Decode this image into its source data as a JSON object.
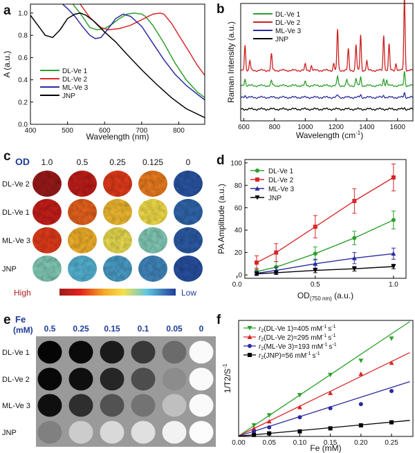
{
  "panel_letters": [
    "a",
    "b",
    "c",
    "d",
    "e",
    "f"
  ],
  "chart_data": [
    {
      "panel": "a",
      "type": "line",
      "title": "",
      "xlabel": "Wavelength (nm)",
      "ylabel": "A (a.u.)",
      "xlim": [
        400,
        870
      ],
      "ylim": [
        0,
        1.08
      ],
      "xticks": [
        400,
        500,
        600,
        700,
        800
      ],
      "yticks": [
        0.0,
        0.2,
        0.4,
        0.6,
        0.8,
        1.0
      ],
      "ytick_labels": [
        "0.0",
        "0.2",
        "0.4",
        "0.6",
        "0.8",
        "1.0"
      ],
      "legend": "bottom-left",
      "series": [
        {
          "name": "DL-Ve 1",
          "color": "#2ca02c",
          "x": [
            510,
            540,
            560,
            580,
            600,
            620,
            640,
            660,
            680,
            700,
            710,
            730,
            760,
            790,
            820,
            850,
            870
          ],
          "y": [
            1.1,
            0.97,
            0.87,
            0.85,
            0.86,
            0.9,
            0.95,
            0.99,
            1.0,
            0.99,
            0.97,
            0.89,
            0.73,
            0.55,
            0.4,
            0.29,
            0.24
          ]
        },
        {
          "name": "DL-Ve 2",
          "color": "#d62728",
          "x": [
            530,
            560,
            590,
            610,
            640,
            670,
            700,
            730,
            750,
            760,
            780,
            800,
            830,
            850,
            870
          ],
          "y": [
            1.1,
            0.96,
            0.87,
            0.85,
            0.86,
            0.89,
            0.94,
            0.99,
            1.0,
            0.99,
            0.91,
            0.8,
            0.64,
            0.53,
            0.44
          ]
        },
        {
          "name": "ML-Ve 3",
          "color": "#2a2aa0",
          "x": [
            480,
            500,
            520,
            540,
            560,
            575,
            590,
            610,
            630,
            650,
            670,
            700,
            730,
            760,
            790,
            820,
            850,
            870
          ],
          "y": [
            1.1,
            1.04,
            0.97,
            0.88,
            0.8,
            0.77,
            0.78,
            0.86,
            0.95,
            0.99,
            0.97,
            0.88,
            0.73,
            0.58,
            0.45,
            0.35,
            0.27,
            0.22
          ]
        },
        {
          "name": "JNP",
          "color": "#000000",
          "x": [
            400,
            420,
            440,
            460,
            480,
            500,
            520,
            535,
            550,
            570,
            600,
            630,
            660,
            700,
            740,
            780,
            820,
            870
          ],
          "y": [
            0.98,
            0.89,
            0.8,
            0.78,
            0.85,
            0.95,
            0.99,
            1.0,
            0.98,
            0.93,
            0.83,
            0.74,
            0.63,
            0.49,
            0.36,
            0.24,
            0.14,
            0.06
          ]
        }
      ]
    },
    {
      "panel": "b",
      "type": "line",
      "title": "",
      "xlabel": "Wavelength (cm",
      "xlabel_superscript": "-1",
      "xlabel_suffix": ")",
      "ylabel": "Raman Intensity (a.u.)",
      "xlim": [
        580,
        1700
      ],
      "xticks": [
        600,
        800,
        1000,
        1200,
        1400,
        1600
      ],
      "legend": "top-left",
      "series": [
        {
          "name": "DL-Ve 1",
          "color": "#2ca02c",
          "baseline": 0.3,
          "peaks": [
            [
              608,
              0.06
            ],
            [
              780,
              0.04
            ],
            [
              1000,
              0.03
            ],
            [
              1210,
              0.08
            ],
            [
              1270,
              0.05
            ],
            [
              1330,
              0.06
            ],
            [
              1360,
              0.07
            ],
            [
              1510,
              0.06
            ],
            [
              1530,
              0.05
            ],
            [
              1645,
              0.12
            ]
          ]
        },
        {
          "name": "DL-Ve 2",
          "color": "#cc1f1f",
          "baseline": 0.43,
          "peaks": [
            [
              608,
              0.22
            ],
            [
              640,
              0.08
            ],
            [
              780,
              0.14
            ],
            [
              1000,
              0.05
            ],
            [
              1040,
              0.04
            ],
            [
              1185,
              0.06
            ],
            [
              1210,
              0.35
            ],
            [
              1280,
              0.18
            ],
            [
              1330,
              0.22
            ],
            [
              1360,
              0.3
            ],
            [
              1400,
              0.08
            ],
            [
              1510,
              0.3
            ],
            [
              1545,
              0.22
            ],
            [
              1590,
              0.06
            ],
            [
              1645,
              0.62
            ]
          ]
        },
        {
          "name": "ML-Ve 3",
          "color": "#2a2aa0",
          "baseline": 0.2,
          "peaks": [
            [
              608,
              0.02
            ],
            [
              1210,
              0.02
            ],
            [
              1360,
              0.02
            ],
            [
              1510,
              0.02
            ],
            [
              1645,
              0.04
            ]
          ]
        },
        {
          "name": "JNP",
          "color": "#000000",
          "baseline": 0.1,
          "peaks": [
            [
              1645,
              0.01
            ]
          ]
        }
      ]
    },
    {
      "panel": "d",
      "type": "line",
      "title": "",
      "xlabel": "OD",
      "xlabel_subscript": "(750 nm)",
      "xlabel_suffix": " (a.u.)",
      "ylabel": "PA Amplitude (a.u.)",
      "xlim": [
        0.05,
        1.08
      ],
      "ylim": [
        -3,
        103
      ],
      "xticks": [
        0.0,
        0.5,
        1.0
      ],
      "xtick_labels": [
        "0.0",
        "0.5",
        "1.0"
      ],
      "yticks": [
        0,
        20,
        40,
        60,
        80,
        100
      ],
      "legend": "top-left",
      "x": [
        0.125,
        0.25,
        0.5,
        0.75,
        1.0
      ],
      "series": [
        {
          "name": "DL-Ve 1",
          "color": "#2ca02c",
          "marker": "circle",
          "values": [
            3,
            7,
            19,
            33,
            49
          ],
          "errors": [
            3,
            5,
            6,
            6,
            8
          ]
        },
        {
          "name": "DL-Ve 2",
          "color": "#d62728",
          "marker": "square",
          "values": [
            11,
            20,
            43,
            66,
            87
          ],
          "errors": [
            6,
            8,
            10,
            11,
            12
          ]
        },
        {
          "name": "ML-Ve 3",
          "color": "#2a2aa0",
          "marker": "triangle-up",
          "values": [
            1.5,
            4,
            10,
            15,
            19
          ],
          "errors": [
            2,
            3,
            4,
            5,
            5
          ]
        },
        {
          "name": "JNP",
          "color": "#000000",
          "marker": "triangle-down",
          "values": [
            1,
            2,
            4,
            5.5,
            7.5
          ],
          "errors": [
            1,
            1.5,
            2,
            2,
            2
          ]
        }
      ]
    },
    {
      "panel": "f",
      "type": "scatter",
      "title": "",
      "xlabel": "Fe (mM)",
      "ylabel": "1/T2/S",
      "ylabel_superscript": "-1",
      "xlim": [
        0.0,
        0.285
      ],
      "ylim": [
        0,
        115
      ],
      "xticks": [
        0.0,
        0.05,
        0.1,
        0.15,
        0.2,
        0.25
      ],
      "xtick_labels": [
        "0.00",
        "0.05",
        "0.10",
        "0.15",
        "0.20",
        "0.25"
      ],
      "yticks": [],
      "legend": "top-left",
      "series": [
        {
          "name": "DL-Ve 1",
          "label_r": "r",
          "label_sub": "2",
          "label_main": "(DL-Ve 1)=405 mM",
          "label_unit": "s",
          "color": "#2ca02c",
          "marker": "triangle-down",
          "slope": 405,
          "intercept": 0.5,
          "x": [
            0.025,
            0.05,
            0.1,
            0.15,
            0.2,
            0.25
          ],
          "y": [
            11,
            21,
            41,
            61,
            75,
            97
          ]
        },
        {
          "name": "DL-Ve 2",
          "label_r": "r",
          "label_sub": "2",
          "label_main": "(DL-Ve 2)=295 mM",
          "label_unit": "s",
          "color": "#d62728",
          "marker": "triangle-up",
          "slope": 295,
          "intercept": 0.5,
          "x": [
            0.025,
            0.05,
            0.1,
            0.15,
            0.2,
            0.25
          ],
          "y": [
            8,
            15,
            29,
            43,
            62,
            73
          ]
        },
        {
          "name": "ML-Ve 3",
          "label_r": "r",
          "label_sub": "2",
          "label_main": "(ML-Ve 3)=193 mM",
          "label_unit": "s",
          "color": "#2a2aa0",
          "marker": "circle",
          "slope": 193,
          "intercept": 0.3,
          "x": [
            0.025,
            0.05,
            0.1,
            0.15,
            0.2,
            0.25
          ],
          "y": [
            5,
            9,
            19,
            28,
            32,
            45
          ]
        },
        {
          "name": "JNP",
          "label_r": "r",
          "label_sub": "2",
          "label_main": "(JNP)=56 mM",
          "label_unit": "s",
          "color": "#000000",
          "marker": "square",
          "slope": 56,
          "intercept": 0.2,
          "x": [
            0.025,
            0.05,
            0.1,
            0.15,
            0.2,
            0.25
          ],
          "y": [
            1.5,
            3,
            5,
            8,
            11,
            14
          ]
        }
      ]
    }
  ],
  "panel_c": {
    "od_label": "OD",
    "columns": [
      "1.0",
      "0.5",
      "0.25",
      "0.125",
      "0"
    ],
    "rows": [
      "DL-Ve 2",
      "DL-Ve 1",
      "ML-Ve 3",
      "JNP"
    ],
    "colorbar_high": "High",
    "colorbar_low": "Low",
    "intensity": [
      [
        1.0,
        0.9,
        0.78,
        0.68,
        0.05
      ],
      [
        0.88,
        0.72,
        0.55,
        0.45,
        0.08
      ],
      [
        0.78,
        0.58,
        0.44,
        0.3,
        0.06
      ],
      [
        0.3,
        0.22,
        0.18,
        0.14,
        0.04
      ]
    ]
  },
  "panel_e": {
    "fe_label": "Fe",
    "fe_unit": "(mM)",
    "columns": [
      "0.5",
      "0.25",
      "0.15",
      "0.1",
      "0.05",
      "0"
    ],
    "rows": [
      "DL-Ve 1",
      "DL-Ve 2",
      "ML-Ve 3",
      "JNP"
    ],
    "brightness": [
      [
        0.02,
        0.04,
        0.1,
        0.22,
        0.42,
        0.98
      ],
      [
        0.03,
        0.06,
        0.15,
        0.3,
        0.55,
        0.98
      ],
      [
        0.06,
        0.18,
        0.32,
        0.45,
        0.75,
        0.98
      ],
      [
        0.5,
        0.8,
        0.85,
        0.88,
        0.95,
        0.99
      ]
    ]
  }
}
